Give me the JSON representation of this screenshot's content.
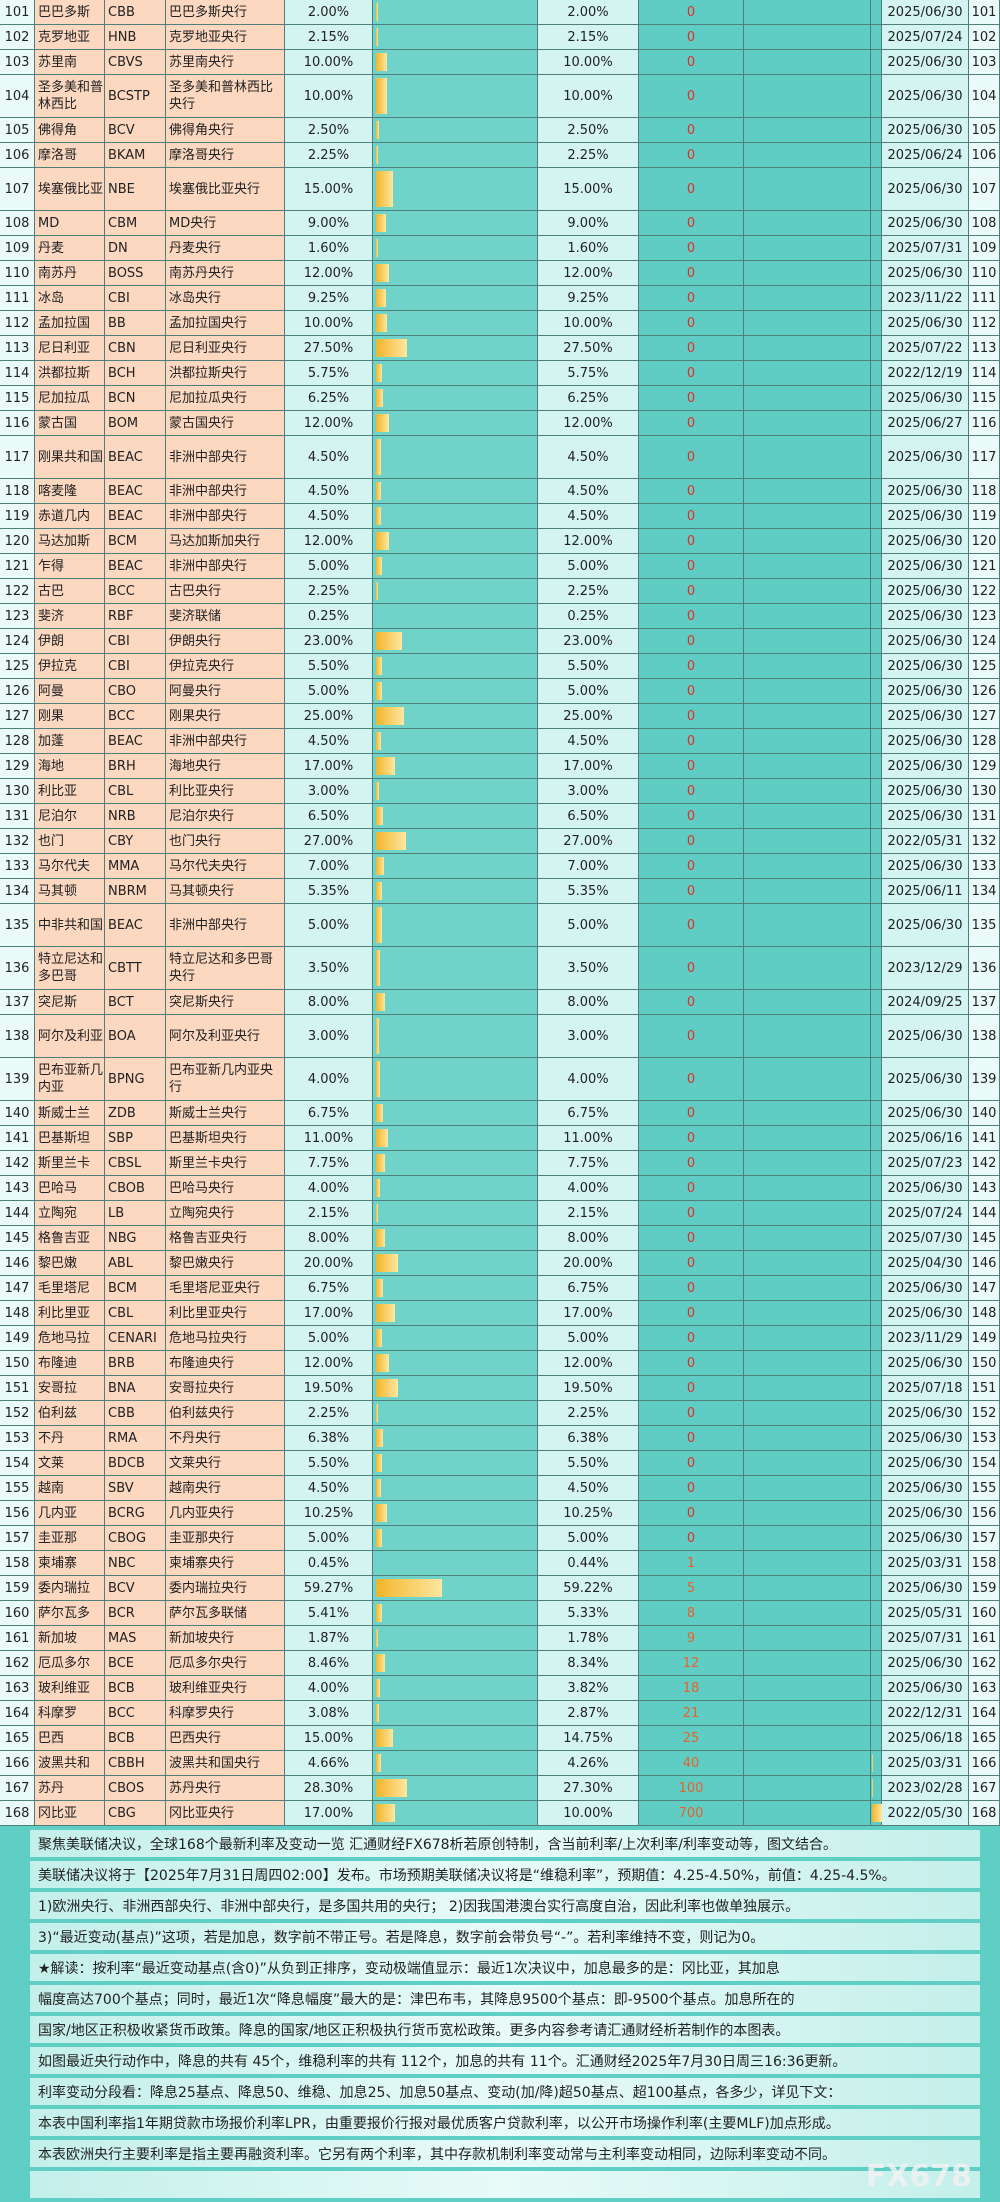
{
  "table": {
    "rows": [
      [
        101,
        "巴巴多斯",
        "CBB",
        "巴巴多斯央行",
        2,
        "2.00%",
        "2.00%",
        0,
        "2025/06/30"
      ],
      [
        102,
        "克罗地亚",
        "HNB",
        "克罗地亚央行",
        2.15,
        "2.15%",
        "2.15%",
        0,
        "2025/07/24"
      ],
      [
        103,
        "苏里南",
        "CBVS",
        "苏里南央行",
        10,
        "10.00%",
        "10.00%",
        0,
        "2025/06/30"
      ],
      [
        104,
        "圣多美和普林西比",
        "BCSTP",
        "圣多美和普林西比央行",
        10,
        "10.00%",
        "10.00%",
        0,
        "2025/06/30"
      ],
      [
        105,
        "佛得角",
        "BCV",
        "佛得角央行",
        2.5,
        "2.50%",
        "2.50%",
        0,
        "2025/06/30"
      ],
      [
        106,
        "摩洛哥",
        "BKAM",
        "摩洛哥央行",
        2.25,
        "2.25%",
        "2.25%",
        0,
        "2025/06/24"
      ],
      [
        107,
        "埃塞俄比亚",
        "NBE",
        "埃塞俄比亚央行",
        15,
        "15.00%",
        "15.00%",
        0,
        "2025/06/30"
      ],
      [
        108,
        "MD",
        "CBM",
        "MD央行",
        9,
        "9.00%",
        "9.00%",
        0,
        "2025/06/30"
      ],
      [
        109,
        "丹麦",
        "DN",
        "丹麦央行",
        1.6,
        "1.60%",
        "1.60%",
        0,
        "2025/07/31"
      ],
      [
        110,
        "南苏丹",
        "BOSS",
        "南苏丹央行",
        12,
        "12.00%",
        "12.00%",
        0,
        "2025/06/30"
      ],
      [
        111,
        "冰岛",
        "CBI",
        "冰岛央行",
        9.25,
        "9.25%",
        "9.25%",
        0,
        "2023/11/22"
      ],
      [
        112,
        "孟加拉国",
        "BB",
        "孟加拉国央行",
        10,
        "10.00%",
        "10.00%",
        0,
        "2025/06/30"
      ],
      [
        113,
        "尼日利亚",
        "CBN",
        "尼日利亚央行",
        27.5,
        "27.50%",
        "27.50%",
        0,
        "2025/07/22"
      ],
      [
        114,
        "洪都拉斯",
        "BCH",
        "洪都拉斯央行",
        5.75,
        "5.75%",
        "5.75%",
        0,
        "2022/12/19"
      ],
      [
        115,
        "尼加拉瓜",
        "BCN",
        "尼加拉瓜央行",
        6.25,
        "6.25%",
        "6.25%",
        0,
        "2025/06/30"
      ],
      [
        116,
        "蒙古国",
        "BOM",
        "蒙古国央行",
        12,
        "12.00%",
        "12.00%",
        0,
        "2025/06/27"
      ],
      [
        117,
        "刚果共和国",
        "BEAC",
        "非洲中部央行",
        4.5,
        "4.50%",
        "4.50%",
        0,
        "2025/06/30"
      ],
      [
        118,
        "喀麦隆",
        "BEAC",
        "非洲中部央行",
        4.5,
        "4.50%",
        "4.50%",
        0,
        "2025/06/30"
      ],
      [
        119,
        "赤道几内",
        "BEAC",
        "非洲中部央行",
        4.5,
        "4.50%",
        "4.50%",
        0,
        "2025/06/30"
      ],
      [
        120,
        "马达加斯",
        "BCM",
        "马达加斯加央行",
        12,
        "12.00%",
        "12.00%",
        0,
        "2025/06/30"
      ],
      [
        121,
        "乍得",
        "BEAC",
        "非洲中部央行",
        5,
        "5.00%",
        "5.00%",
        0,
        "2025/06/30"
      ],
      [
        122,
        "古巴",
        "BCC",
        "古巴央行",
        2.25,
        "2.25%",
        "2.25%",
        0,
        "2025/06/30"
      ],
      [
        123,
        "斐济",
        "RBF",
        "斐济联储",
        0.25,
        "0.25%",
        "0.25%",
        0,
        "2025/06/30"
      ],
      [
        124,
        "伊朗",
        "CBI",
        "伊朗央行",
        23,
        "23.00%",
        "23.00%",
        0,
        "2025/06/30"
      ],
      [
        125,
        "伊拉克",
        "CBI",
        "伊拉克央行",
        5.5,
        "5.50%",
        "5.50%",
        0,
        "2025/06/30"
      ],
      [
        126,
        "阿曼",
        "CBO",
        "阿曼央行",
        5,
        "5.00%",
        "5.00%",
        0,
        "2025/06/30"
      ],
      [
        127,
        "刚果",
        "BCC",
        "刚果央行",
        25,
        "25.00%",
        "25.00%",
        0,
        "2025/06/30"
      ],
      [
        128,
        "加蓬",
        "BEAC",
        "非洲中部央行",
        4.5,
        "4.50%",
        "4.50%",
        0,
        "2025/06/30"
      ],
      [
        129,
        "海地",
        "BRH",
        "海地央行",
        17,
        "17.00%",
        "17.00%",
        0,
        "2025/06/30"
      ],
      [
        130,
        "利比亚",
        "CBL",
        "利比亚央行",
        3,
        "3.00%",
        "3.00%",
        0,
        "2025/06/30"
      ],
      [
        131,
        "尼泊尔",
        "NRB",
        "尼泊尔央行",
        6.5,
        "6.50%",
        "6.50%",
        0,
        "2025/06/30"
      ],
      [
        132,
        "也门",
        "CBY",
        "也门央行",
        27,
        "27.00%",
        "27.00%",
        0,
        "2022/05/31"
      ],
      [
        133,
        "马尔代夫",
        "MMA",
        "马尔代夫央行",
        7,
        "7.00%",
        "7.00%",
        0,
        "2025/06/30"
      ],
      [
        134,
        "马其顿",
        "NBRM",
        "马其顿央行",
        5.35,
        "5.35%",
        "5.35%",
        0,
        "2025/06/11"
      ],
      [
        135,
        "中非共和国",
        "BEAC",
        "非洲中部央行",
        5,
        "5.00%",
        "5.00%",
        0,
        "2025/06/30"
      ],
      [
        136,
        "特立尼达和多巴哥",
        "CBTT",
        "特立尼达和多巴哥央行",
        3.5,
        "3.50%",
        "3.50%",
        0,
        "2023/12/29"
      ],
      [
        137,
        "突尼斯",
        "BCT",
        "突尼斯央行",
        8,
        "8.00%",
        "8.00%",
        0,
        "2024/09/25"
      ],
      [
        138,
        "阿尔及利亚",
        "BOA",
        "阿尔及利亚央行",
        3,
        "3.00%",
        "3.00%",
        0,
        "2025/06/30"
      ],
      [
        139,
        "巴布亚新几内亚",
        "BPNG",
        "巴布亚新几内亚央行",
        4,
        "4.00%",
        "4.00%",
        0,
        "2025/06/30"
      ],
      [
        140,
        "斯威士兰",
        "ZDB",
        "斯威士兰央行",
        6.75,
        "6.75%",
        "6.75%",
        0,
        "2025/06/30"
      ],
      [
        141,
        "巴基斯坦",
        "SBP",
        "巴基斯坦央行",
        11,
        "11.00%",
        "11.00%",
        0,
        "2025/06/16"
      ],
      [
        142,
        "斯里兰卡",
        "CBSL",
        "斯里兰卡央行",
        7.75,
        "7.75%",
        "7.75%",
        0,
        "2025/07/23"
      ],
      [
        143,
        "巴哈马",
        "CBOB",
        "巴哈马央行",
        4,
        "4.00%",
        "4.00%",
        0,
        "2025/06/30"
      ],
      [
        144,
        "立陶宛",
        "LB",
        "立陶宛央行",
        2.15,
        "2.15%",
        "2.15%",
        0,
        "2025/07/24"
      ],
      [
        145,
        "格鲁吉亚",
        "NBG",
        "格鲁吉亚央行",
        8,
        "8.00%",
        "8.00%",
        0,
        "2025/07/30"
      ],
      [
        146,
        "黎巴嫩",
        "ABL",
        "黎巴嫩央行",
        20,
        "20.00%",
        "20.00%",
        0,
        "2025/04/30"
      ],
      [
        147,
        "毛里塔尼",
        "BCM",
        "毛里塔尼亚央行",
        6.75,
        "6.75%",
        "6.75%",
        0,
        "2025/06/30"
      ],
      [
        148,
        "利比里亚",
        "CBL",
        "利比里亚央行",
        17,
        "17.00%",
        "17.00%",
        0,
        "2025/06/30"
      ],
      [
        149,
        "危地马拉",
        "CENARI",
        "危地马拉央行",
        5,
        "5.00%",
        "5.00%",
        0,
        "2023/11/29"
      ],
      [
        150,
        "布隆迪",
        "BRB",
        "布隆迪央行",
        12,
        "12.00%",
        "12.00%",
        0,
        "2025/06/30"
      ],
      [
        151,
        "安哥拉",
        "BNA",
        "安哥拉央行",
        19.5,
        "19.50%",
        "19.50%",
        0,
        "2025/07/18"
      ],
      [
        152,
        "伯利兹",
        "CBB",
        "伯利兹央行",
        2.25,
        "2.25%",
        "2.25%",
        0,
        "2025/06/30"
      ],
      [
        153,
        "不丹",
        "RMA",
        "不丹央行",
        6.38,
        "6.38%",
        "6.38%",
        0,
        "2025/06/30"
      ],
      [
        154,
        "文莱",
        "BDCB",
        "文莱央行",
        5.5,
        "5.50%",
        "5.50%",
        0,
        "2025/06/30"
      ],
      [
        155,
        "越南",
        "SBV",
        "越南央行",
        4.5,
        "4.50%",
        "4.50%",
        0,
        "2025/06/30"
      ],
      [
        156,
        "几内亚",
        "BCRG",
        "几内亚央行",
        10.25,
        "10.25%",
        "10.25%",
        0,
        "2025/06/30"
      ],
      [
        157,
        "圭亚那",
        "CBOG",
        "圭亚那央行",
        5,
        "5.00%",
        "5.00%",
        0,
        "2025/06/30"
      ],
      [
        158,
        "柬埔寨",
        "NBC",
        "柬埔寨央行",
        0.45,
        "0.45%",
        "0.44%",
        1,
        "2025/03/31"
      ],
      [
        159,
        "委内瑞拉",
        "BCV",
        "委内瑞拉央行",
        59.27,
        "59.27%",
        "59.22%",
        5,
        "2025/06/30"
      ],
      [
        160,
        "萨尔瓦多",
        "BCR",
        "萨尔瓦多联储",
        5.41,
        "5.41%",
        "5.33%",
        8,
        "2025/05/31"
      ],
      [
        161,
        "新加坡",
        "MAS",
        "新加坡央行",
        1.87,
        "1.87%",
        "1.78%",
        9,
        "2025/07/31"
      ],
      [
        162,
        "厄瓜多尔",
        "BCE",
        "厄瓜多尔央行",
        8.46,
        "8.46%",
        "8.34%",
        12,
        "2025/06/30"
      ],
      [
        163,
        "玻利维亚",
        "BCB",
        "玻利维亚央行",
        4,
        "4.00%",
        "3.82%",
        18,
        "2025/06/30"
      ],
      [
        164,
        "科摩罗",
        "BCC",
        "科摩罗央行",
        3.08,
        "3.08%",
        "2.87%",
        21,
        "2022/12/31"
      ],
      [
        165,
        "巴西",
        "BCB",
        "巴西央行",
        15,
        "15.00%",
        "14.75%",
        25,
        "2025/06/18"
      ],
      [
        166,
        "波黑共和",
        "CBBH",
        "波黑共和国央行",
        4.66,
        "4.66%",
        "4.26%",
        40,
        "2025/03/31"
      ],
      [
        167,
        "苏丹",
        "CBOS",
        "苏丹央行",
        28.3,
        "28.30%",
        "27.30%",
        100,
        "2023/02/28"
      ],
      [
        168,
        "冈比亚",
        "CBG",
        "冈比亚央行",
        17,
        "17.00%",
        "10.00%",
        700,
        "2022/05/30"
      ]
    ]
  },
  "notes": [
    "聚焦美联储决议，全球168个最新利率及变动一览 汇通财经FX678析若原创特制，含当前利率/上次利率/利率变动等，图文结合。",
    "美联储决议将于【2025年7月31日周四02:00】发布。市场预期美联储决议将是“维稳利率”，预期值：4.25-4.50%，前值：4.25-4.5%。",
    "1)欧洲央行、非洲西部央行、非洲中部央行，是多国共用的央行；  2)因我国港澳台实行高度自治，因此利率也做单独展示。",
    "3)“最近变动(基点)”这项，若是加息，数字前不带正号。若是降息，数字前会带负号“-”。若利率维持不变，则记为0。",
    "★解读：按利率“最近变动基点(含0)”从负到正排序，变动极端值显示：最近1次决议中，加息最多的是：冈比亚，其加息",
    "幅度高达700个基点；同时，最近1次“降息幅度”最大的是：津巴布韦，其降息9500个基点：即-9500个基点。加息所在的",
    "国家/地区正积极收紧货币政策。降息的国家/地区正积极执行货币宽松政策。更多内容参考请汇通财经析若制作的本图表。",
    "如图最近央行动作中，降息的共有 45个，维稳利率的共有 112个，加息的共有 11个。汇通财经2025年7月30日周三16:36更新。",
    "利率变动分段看：降息25基点、降息50、维稳、加息25、加息50基点、变动(加/降)超50基点、超100基点，各多少，详见下文：",
    "本表中国利率指1年期贷款市场报价利率LPR，由重要报价行报对最优质客户贷款利率，以公开市场操作利率(主要MLF)加点形成。",
    "本表欧洲央行主要利率是指主要再融资利率。它另有两个利率，其中存款机制利率变动常与主利率变动相同，边际利率变动不同。"
  ],
  "watermark": "FX678"
}
